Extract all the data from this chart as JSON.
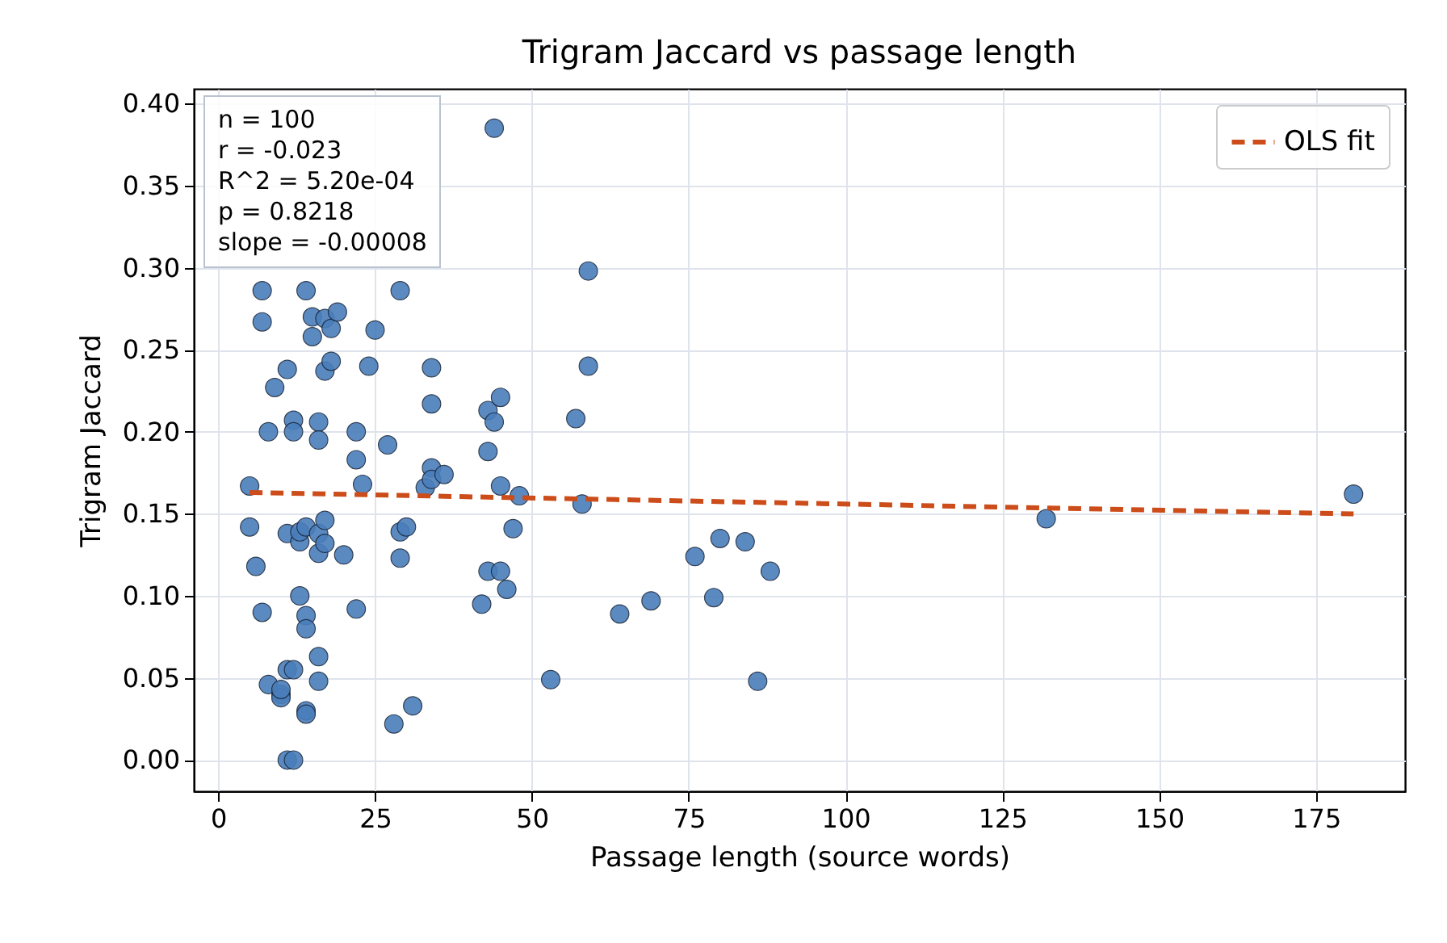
{
  "chart_data": {
    "type": "scatter",
    "title": "Trigram Jaccard vs passage length",
    "xlabel": "Passage length (source words)",
    "ylabel": "Trigram Jaccard",
    "annotations": [
      "n = 100",
      "r = -0.023",
      "R^2 = 5.20e-04",
      "p = 0.8218",
      "slope = -0.00008"
    ],
    "xlim": [
      -3.9,
      189.2
    ],
    "ylim": [
      -0.019,
      0.409
    ],
    "xticks": [
      0,
      25,
      50,
      75,
      100,
      125,
      150,
      175
    ],
    "yticks": [
      {
        "value": 0,
        "label": "0.00"
      },
      {
        "value": 0.05,
        "label": "0.05"
      },
      {
        "value": 0.1,
        "label": "0.10"
      },
      {
        "value": 0.15,
        "label": "0.15"
      },
      {
        "value": 0.2,
        "label": "0.20"
      },
      {
        "value": 0.25,
        "label": "0.25"
      },
      {
        "value": 0.3,
        "label": "0.30"
      },
      {
        "value": 0.35,
        "label": "0.35"
      },
      {
        "value": 0.4,
        "label": "0.40"
      }
    ],
    "grid": true,
    "legend": "top right",
    "series": [
      {
        "type": "scatter",
        "marker": "circle",
        "color": "#4a7ebb",
        "x": [
          5,
          5,
          6,
          7,
          7,
          7,
          8,
          8,
          9,
          10,
          10,
          10,
          11,
          11,
          11,
          11,
          12,
          12,
          12,
          12,
          13,
          13,
          13,
          14,
          14,
          14,
          14,
          14,
          14,
          15,
          15,
          16,
          16,
          16,
          16,
          16,
          16,
          17,
          17,
          17,
          17,
          18,
          18,
          19,
          20,
          22,
          22,
          22,
          23,
          24,
          25,
          27,
          28,
          29,
          29,
          29,
          30,
          31,
          33,
          34,
          34,
          34,
          34,
          36,
          42,
          43,
          43,
          43,
          44,
          44,
          45,
          45,
          45,
          46,
          47,
          48,
          53,
          57,
          58,
          59,
          59,
          64,
          69,
          76,
          79,
          80,
          84,
          86,
          88,
          132,
          181
        ],
        "values": [
          0.167,
          0.142,
          0.118,
          0.09,
          0.267,
          0.286,
          0.2,
          0.046,
          0.227,
          0.04,
          0.038,
          0.043,
          0.238,
          0.138,
          0.055,
          0,
          0,
          0.207,
          0.2,
          0.055,
          0.133,
          0.1,
          0.139,
          0.142,
          0.088,
          0.08,
          0.03,
          0.028,
          0.286,
          0.27,
          0.258,
          0.206,
          0.195,
          0.138,
          0.126,
          0.063,
          0.048,
          0.269,
          0.237,
          0.146,
          0.132,
          0.243,
          0.263,
          0.273,
          0.125,
          0.2,
          0.183,
          0.092,
          0.168,
          0.24,
          0.262,
          0.192,
          0.022,
          0.286,
          0.139,
          0.123,
          0.142,
          0.033,
          0.166,
          0.178,
          0.239,
          0.217,
          0.171,
          0.174,
          0.095,
          0.213,
          0.188,
          0.115,
          0.385,
          0.206,
          0.221,
          0.167,
          0.115,
          0.104,
          0.141,
          0.161,
          0.049,
          0.208,
          0.156,
          0.298,
          0.24,
          0.089,
          0.097,
          0.124,
          0.099,
          0.135,
          0.133,
          0.048,
          0.115,
          0.147,
          0.162
        ]
      },
      {
        "type": "line",
        "name": "OLS fit",
        "color": "#cc4c1a",
        "line_style": "dashed",
        "marker": "none",
        "x": [
          5,
          181
        ],
        "values": [
          0.163,
          0.15
        ]
      }
    ]
  }
}
